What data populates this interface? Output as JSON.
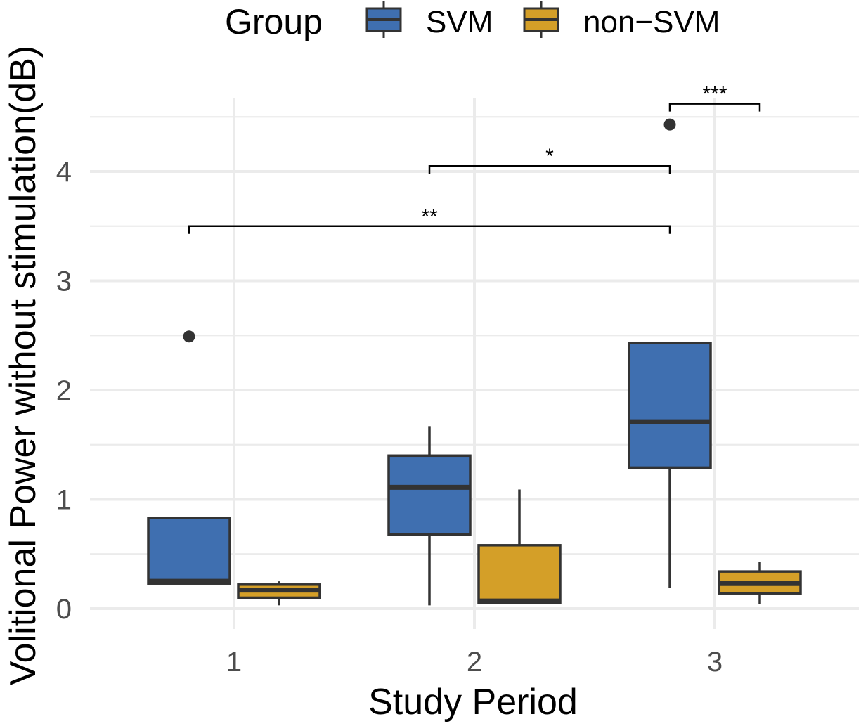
{
  "chart_data": {
    "type": "boxplot",
    "title": "",
    "xlabel": "Study Period",
    "ylabel": "Volitional Power without stimulation(dB)",
    "categories": [
      "1",
      "2",
      "3"
    ],
    "y_ticks": [
      "0",
      "1",
      "2",
      "3",
      "4"
    ],
    "ylim": [
      -0.2,
      4.6
    ],
    "legend": {
      "title": "Group",
      "position": "top",
      "entries": [
        "SVM",
        "non−SVM"
      ]
    },
    "series": [
      {
        "name": "SVM",
        "color": "#3f6fb0",
        "boxes": [
          {
            "category": "1",
            "min": 0.23,
            "q1": 0.23,
            "median": 0.25,
            "q3": 0.83,
            "max": 0.83,
            "outliers": [
              2.49
            ]
          },
          {
            "category": "2",
            "min": 0.03,
            "q1": 0.68,
            "median": 1.11,
            "q3": 1.4,
            "max": 1.67,
            "outliers": []
          },
          {
            "category": "3",
            "min": 0.19,
            "q1": 1.29,
            "median": 1.71,
            "q3": 2.43,
            "max": 2.43,
            "outliers": [
              4.43
            ]
          }
        ]
      },
      {
        "name": "non−SVM",
        "color": "#d49f28",
        "boxes": [
          {
            "category": "1",
            "min": 0.03,
            "q1": 0.1,
            "median": 0.17,
            "q3": 0.22,
            "max": 0.25,
            "outliers": []
          },
          {
            "category": "2",
            "min": 0.04,
            "q1": 0.05,
            "median": 0.07,
            "q3": 0.58,
            "max": 1.09,
            "outliers": []
          },
          {
            "category": "3",
            "min": 0.04,
            "q1": 0.14,
            "median": 0.23,
            "q3": 0.34,
            "max": 0.43,
            "outliers": []
          }
        ]
      }
    ],
    "significance": [
      {
        "label": "***",
        "from_category": "3",
        "from_series": "SVM",
        "to_category": "3",
        "to_series": "non−SVM",
        "y": 4.62
      },
      {
        "label": "*",
        "from_category": "2",
        "from_series": "SVM",
        "to_category": "3",
        "to_series": "SVM",
        "y": 4.05
      },
      {
        "label": "**",
        "from_category": "1",
        "from_series": "SVM",
        "to_category": "3",
        "to_series": "SVM",
        "y": 3.5
      }
    ]
  },
  "colors": {
    "outline": "#333333",
    "grid": "#ebebeb"
  }
}
